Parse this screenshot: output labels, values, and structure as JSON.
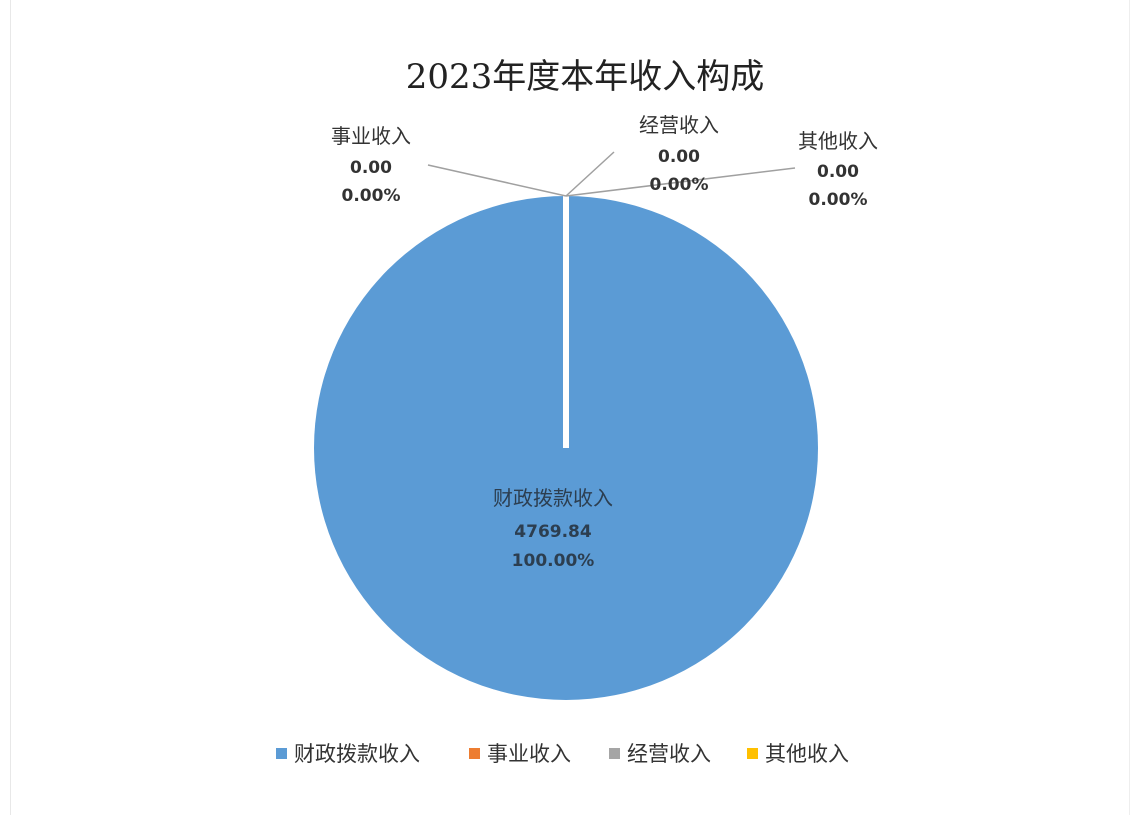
{
  "chart_data": {
    "type": "pie",
    "title": "2023年度本年收入构成",
    "categories": [
      "财政拨款收入",
      "事业收入",
      "经营收入",
      "其他收入"
    ],
    "values": [
      4769.84,
      0.0,
      0.0,
      0.0
    ],
    "value_labels": [
      "4769.84",
      "0.00",
      "0.00",
      "0.00"
    ],
    "percent_labels": [
      "100.00%",
      "0.00%",
      "0.00%",
      "0.00%"
    ],
    "colors": [
      "#5B9BD5",
      "#ED7D31",
      "#A5A5A5",
      "#FFC000"
    ],
    "legend_position": "bottom"
  }
}
